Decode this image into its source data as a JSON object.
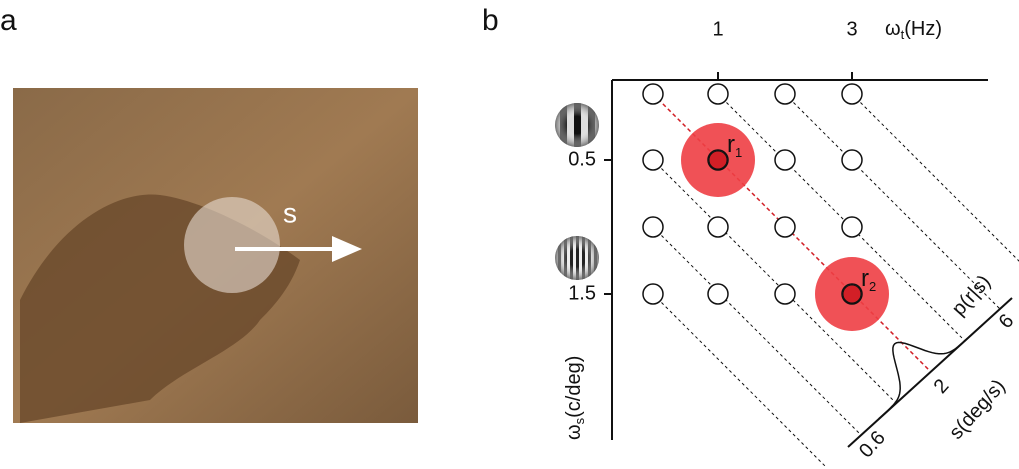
{
  "panel_a": {
    "label": "a",
    "speed_label": "s"
  },
  "panel_b": {
    "label": "b",
    "x_ticks": [
      "1",
      "3"
    ],
    "x_axis": {
      "symbol": "ω",
      "sub": "t",
      "unit": "(Hz)"
    },
    "y_ticks": [
      "0.5",
      "1.5"
    ],
    "y_axis": {
      "symbol": "ω",
      "sub": "s",
      "unit": "(c/deg)"
    },
    "responses": [
      {
        "symbol": "r",
        "sub": "1"
      },
      {
        "symbol": "r",
        "sub": "2"
      }
    ],
    "likelihood": "p(r|s)",
    "speed_ticks": [
      "0.6",
      "2",
      "6"
    ],
    "speed_axis": "s(deg/s)"
  }
}
